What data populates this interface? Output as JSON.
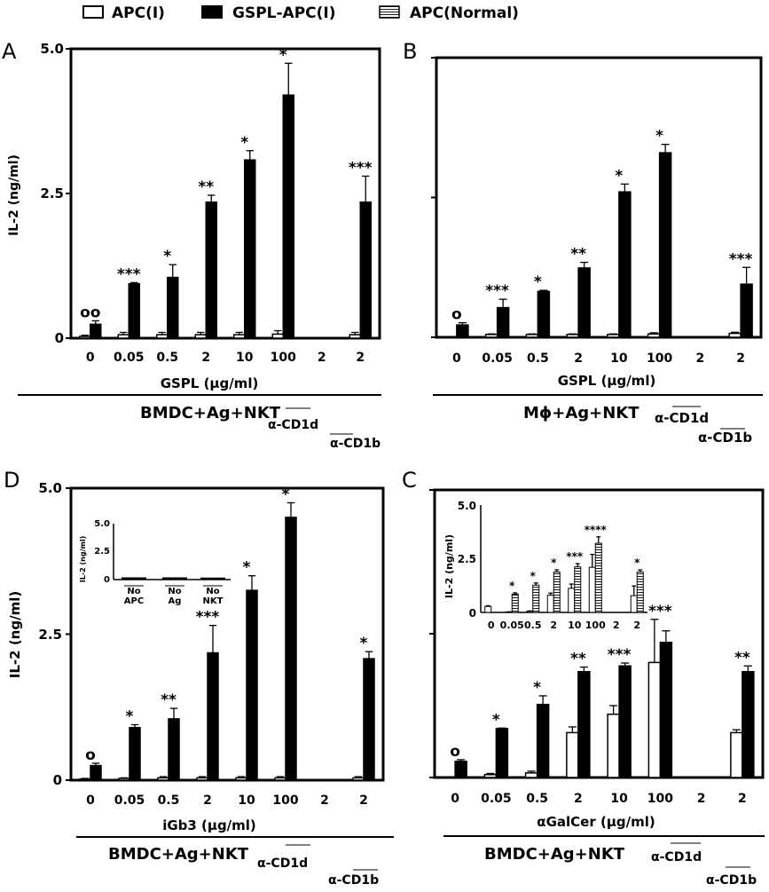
{
  "legend": {
    "items": [
      {
        "label": "APC(I)",
        "pattern": "open"
      },
      {
        "label": "GSPL-APC(I)",
        "pattern": "filled"
      },
      {
        "label": "APC(Normal)",
        "pattern": "hatched"
      }
    ]
  },
  "colors": {
    "bar_fill": "#000000",
    "open_fill": "#ffffff",
    "stroke": "#000000",
    "hatch": "#000000"
  },
  "panels": {
    "A": {
      "letter": "A",
      "ylabel": "IL-2 (ng/ml)",
      "xlabel": "GSPL (μg/ml)",
      "condition": "BMDC+Ag+NKT",
      "ab1": "α-CD1d",
      "ab2": "α-CD1b",
      "yticks": [
        "0",
        "2.5",
        "5.0"
      ]
    },
    "B": {
      "letter": "B",
      "ylabel": "",
      "xlabel": "GSPL (μg/ml)",
      "condition": "Mϕ+Ag+NKT",
      "ab1": "α-CD1d",
      "ab2": "α-CD1b",
      "yticks": [
        "",
        "",
        ""
      ]
    },
    "D": {
      "letter": "D",
      "ylabel": "IL-2 (ng/ml)",
      "xlabel": "iGb3 (μg/ml)",
      "condition": "BMDC+Ag+NKT",
      "ab1": "α-CD1d",
      "ab2": "α-CD1b",
      "yticks": [
        "0",
        "2.5",
        "5.0"
      ],
      "inset": {
        "ylabel": "IL-2 (ng/ml)",
        "yticks": [
          "0",
          "2.5",
          "5.0"
        ],
        "labels": [
          [
            "No",
            "APC"
          ],
          [
            "No",
            "Ag"
          ],
          [
            "No",
            "NKT"
          ]
        ]
      }
    },
    "C": {
      "letter": "C",
      "ylabel": "",
      "xlabel": "αGalCer (μg/ml)",
      "condition": "BMDC+Ag+NKT",
      "ab1": "α-CD1d",
      "ab2": "α-CD1b",
      "yticks": [
        "",
        "",
        ""
      ],
      "inset": {
        "ylabel": "IL-2 (ng/ml)",
        "yticks": [
          "0",
          "2.5",
          "5.0"
        ],
        "xticks": [
          "0",
          "0.05",
          "0.5",
          "2",
          "10",
          "100",
          "2",
          "2"
        ]
      }
    }
  },
  "chart_data": [
    {
      "panel": "A",
      "type": "bar",
      "categories": [
        "0",
        "0.05",
        "0.5",
        "2",
        "10",
        "100",
        "2",
        "2"
      ],
      "ylim": [
        0,
        5.0
      ],
      "series": [
        {
          "name": "APC(I)",
          "values": [
            0.03,
            0.06,
            0.06,
            0.06,
            0.06,
            0.07,
            0,
            0.06
          ],
          "errors": [
            0.02,
            0.04,
            0.04,
            0.04,
            0.04,
            0.06,
            0,
            0.04
          ]
        },
        {
          "name": "GSPL-APC(I)",
          "values": [
            0.24,
            0.94,
            1.05,
            2.35,
            3.08,
            4.2,
            0,
            2.35
          ],
          "errors": [
            0.06,
            0.02,
            0.22,
            0.12,
            0.16,
            0.55,
            0,
            0.45
          ]
        }
      ],
      "annotations": [
        "oo",
        "***",
        "*",
        "**",
        "*",
        "*",
        "",
        "***"
      ]
    },
    {
      "panel": "B",
      "type": "bar",
      "categories": [
        "0",
        "0.05",
        "0.5",
        "2",
        "10",
        "100",
        "2",
        "2"
      ],
      "ylim": [
        0,
        5.0
      ],
      "series": [
        {
          "name": "APC(I)",
          "values": [
            0,
            0.05,
            0.05,
            0.05,
            0.05,
            0.06,
            0,
            0.07
          ],
          "errors": [
            0,
            0.01,
            0.01,
            0.01,
            0.01,
            0.02,
            0,
            0.02
          ]
        },
        {
          "name": "GSPL-APC(I)",
          "values": [
            0.22,
            0.53,
            0.82,
            1.24,
            2.6,
            3.3,
            0,
            0.95
          ],
          "errors": [
            0.04,
            0.15,
            0.02,
            0.1,
            0.14,
            0.15,
            0,
            0.3
          ]
        }
      ],
      "annotations": [
        "o",
        "***",
        "*",
        "**",
        "*",
        "*",
        "",
        "***"
      ]
    },
    {
      "panel": "D",
      "type": "bar",
      "categories": [
        "0",
        "0.05",
        "0.5",
        "2",
        "10",
        "100",
        "2",
        "2"
      ],
      "ylim": [
        0,
        5.0
      ],
      "series": [
        {
          "name": "APC(I)",
          "values": [
            0.02,
            0.03,
            0.04,
            0.04,
            0.04,
            0.04,
            0,
            0.04
          ],
          "errors": [
            0.01,
            0.01,
            0.02,
            0.02,
            0.02,
            0.02,
            0,
            0.02
          ]
        },
        {
          "name": "GSPL-APC(I)",
          "values": [
            0.25,
            0.9,
            1.05,
            2.18,
            3.25,
            4.5,
            0,
            2.08
          ],
          "errors": [
            0.04,
            0.05,
            0.18,
            0.47,
            0.25,
            0.25,
            0,
            0.12
          ]
        }
      ],
      "annotations": [
        "o",
        "*",
        "**",
        "***",
        "*",
        "*",
        "",
        "*"
      ],
      "inset": {
        "categories": [
          "No APC",
          "No Ag",
          "No NKT"
        ],
        "values": [
          0.12,
          0.12,
          0.1
        ],
        "ylim": [
          0,
          5.0
        ]
      }
    },
    {
      "panel": "C",
      "type": "bar",
      "categories": [
        "0",
        "0.05",
        "0.5",
        "2",
        "10",
        "100",
        "2",
        "2"
      ],
      "ylim": [
        0,
        5.0
      ],
      "series": [
        {
          "name": "APC(I)",
          "values": [
            0,
            0.05,
            0.08,
            0.78,
            1.1,
            2.0,
            0,
            0.78
          ],
          "errors": [
            0,
            0.02,
            0.03,
            0.1,
            0.15,
            0.75,
            0,
            0.05
          ]
        },
        {
          "name": "GSPL-APC(I)",
          "values": [
            0.28,
            0.85,
            1.27,
            1.84,
            1.94,
            2.35,
            0,
            1.84
          ],
          "errors": [
            0.03,
            0.01,
            0.15,
            0.08,
            0.05,
            0.2,
            0,
            0.1
          ]
        }
      ],
      "annotations": [
        "o",
        "*",
        "*",
        "**",
        "***",
        "***",
        "",
        "**"
      ],
      "inset": {
        "ylim": [
          0,
          5.0
        ],
        "series": [
          {
            "name": "APC(I)",
            "values": [
              0.28,
              0.02,
              0.05,
              0.8,
              1.12,
              2.1,
              0,
              0.78
            ],
            "errors": [
              0.03,
              0.01,
              0.02,
              0.1,
              0.2,
              0.6,
              0,
              0.45
            ]
          },
          {
            "name": "APC(Normal)",
            "values": [
              0,
              0.85,
              1.27,
              1.88,
              2.12,
              3.22,
              0,
              1.88
            ],
            "errors": [
              0,
              0.06,
              0.1,
              0.1,
              0.15,
              0.3,
              0,
              0.1
            ]
          }
        ],
        "annotations": [
          "",
          "*",
          "*",
          "*",
          "***",
          "****",
          "",
          "*"
        ]
      }
    }
  ]
}
